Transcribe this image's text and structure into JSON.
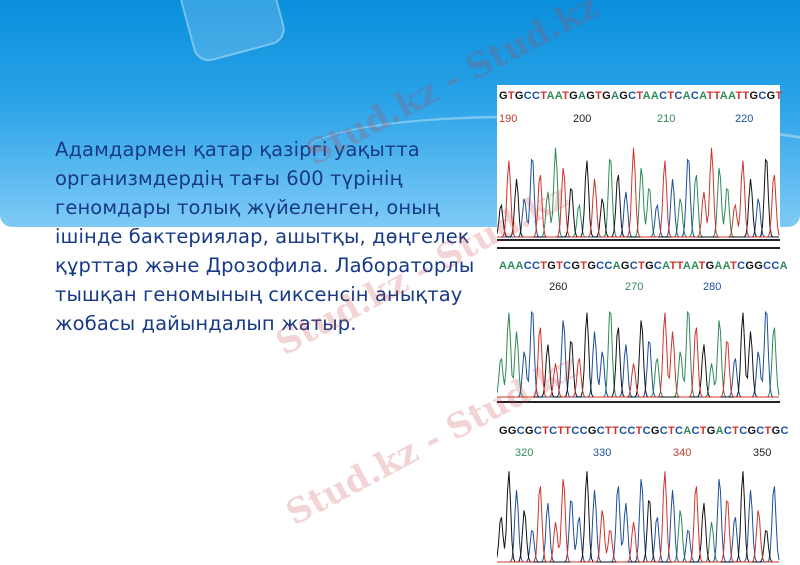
{
  "slide": {
    "body_text": "Адамдармен қатар қазіргі уақытта организмдердің тағы 600 түрінің геномдары толық жүйеленген, оның ішінде бактериялар, ашытқы, дөңгелек құрттар және Дрозофила. Лабораторлы тышқан геномының сиксенсін анықтау жобасы дайындалып жатыр."
  },
  "chromatogram": {
    "panels": [
      {
        "sequence": "GTGCCTAATGAGTGAGCTAACTCACATTAATTGCGT",
        "positions": [
          "190",
          "200",
          "210",
          "220"
        ]
      },
      {
        "sequence": "AAACCTGTCGTGCCAGCTGCATTAATGAATCGGCCA",
        "positions": [
          "260",
          "270",
          "280"
        ]
      },
      {
        "sequence": "GGCGCTCTTCCGCTTCCTCGCTCACTGACTCGCTGC",
        "positions": [
          "320",
          "330",
          "340",
          "350"
        ]
      }
    ],
    "base_colors": {
      "A": "#2e8b57",
      "C": "#1c4f9c",
      "G": "#111111",
      "T": "#d0342c"
    }
  },
  "watermark": {
    "text": "Stud.kz - Stud.kz"
  }
}
